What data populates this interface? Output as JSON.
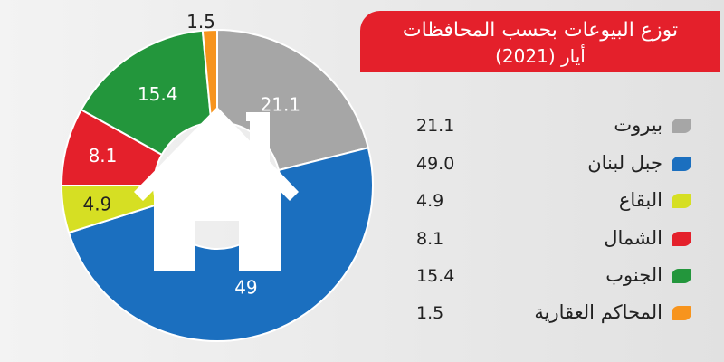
{
  "title": {
    "line1": "توزع البيوعات بحسب المحافظات",
    "line2": "أيار (2021)"
  },
  "colors": {
    "title_bg": "#e4202b",
    "house": "#ffffff",
    "slice_label": "#ffffff"
  },
  "icon": "house-icon",
  "chart_data": {
    "type": "pie",
    "title": "توزع البيوعات بحسب المحافظات",
    "subtitle": "أيار (2021)",
    "legend_position": "right",
    "slices": [
      {
        "label": "بيروت",
        "value": 21.1,
        "display": "21.1",
        "color": "#a6a6a6"
      },
      {
        "label": "جبل لبنان",
        "value": 49.0,
        "display": "49",
        "color": "#1b6fbf"
      },
      {
        "label": "البقاع",
        "value": 4.9,
        "display": "4.9",
        "color": "#d6df23"
      },
      {
        "label": "الشمال",
        "value": 8.1,
        "display": "8.1",
        "color": "#e4202b"
      },
      {
        "label": "الجنوب",
        "value": 15.4,
        "display": "15.4",
        "color": "#23963c"
      },
      {
        "label": "المحاكم العقارية",
        "value": 1.5,
        "display": "1.5",
        "color": "#f7941d"
      }
    ]
  },
  "legend": [
    {
      "label": "بيروت",
      "value": "21.1",
      "color": "#a6a6a6"
    },
    {
      "label": "جبل لبنان",
      "value": "49.0",
      "color": "#1b6fbf"
    },
    {
      "label": "البقاع",
      "value": "4.9",
      "color": "#d6df23"
    },
    {
      "label": "الشمال",
      "value": "8.1",
      "color": "#e4202b"
    },
    {
      "label": "الجنوب",
      "value": "15.4",
      "color": "#23963c"
    },
    {
      "label": "المحاكم العقارية",
      "value": "1.5",
      "color": "#f7941d"
    }
  ]
}
